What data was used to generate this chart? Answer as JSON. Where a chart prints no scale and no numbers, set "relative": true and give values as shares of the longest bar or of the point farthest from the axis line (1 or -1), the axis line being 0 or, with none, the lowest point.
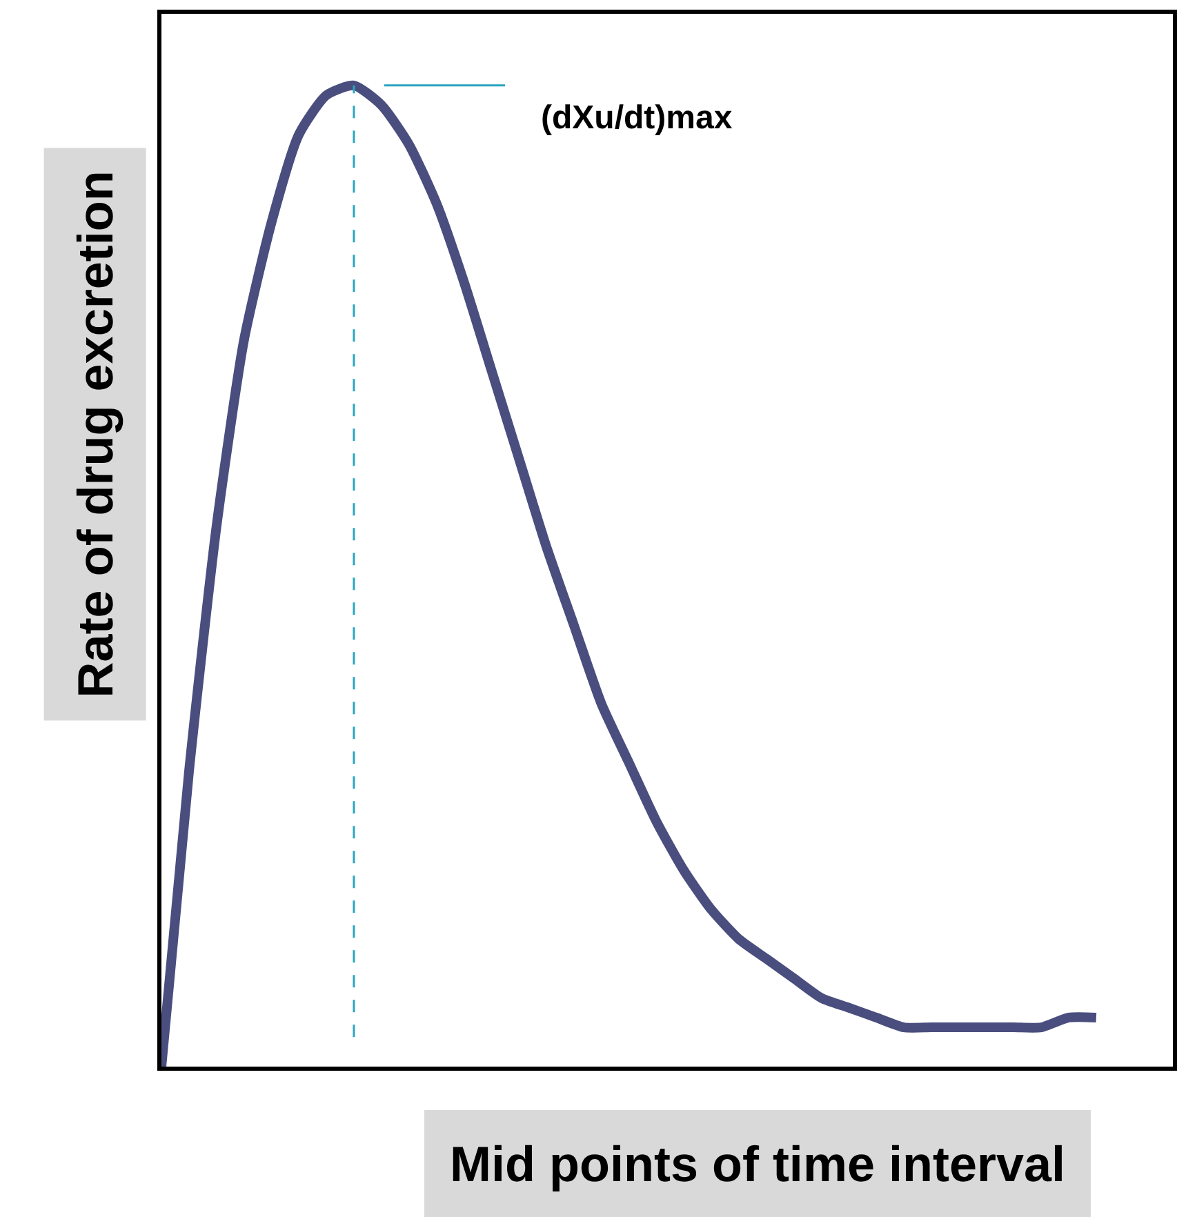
{
  "chart_data": {
    "type": "line",
    "relative": true,
    "xlabel": "Mid points of time interval",
    "ylabel": "Rate of drug excretion",
    "categories": [
      null,
      null,
      null,
      null,
      null,
      null,
      null,
      null,
      null,
      null,
      null,
      null,
      null,
      null,
      null,
      null,
      null,
      null,
      null,
      null,
      null,
      null,
      null,
      null,
      null,
      null,
      null,
      null,
      null,
      null,
      null,
      null,
      null,
      null,
      null
    ],
    "series": [
      {
        "color": "#4a4e7e",
        "values": [
          0,
          0.3,
          0.55,
          0.74,
          0.86,
          0.95,
          0.99,
          1.0,
          0.98,
          0.94,
          0.88,
          0.8,
          0.71,
          0.62,
          0.53,
          0.45,
          0.37,
          0.31,
          0.25,
          0.2,
          0.16,
          0.13,
          0.11,
          0.09,
          0.07,
          0.06,
          0.05,
          0.04,
          0.04,
          0.04,
          0.04,
          0.04,
          0.04,
          0.05,
          0.05
        ]
      }
    ],
    "annotations": [
      "(dXu/dt)max"
    ],
    "legend": false,
    "marker": "none",
    "line_style": "solid",
    "tick_labels": false
  }
}
